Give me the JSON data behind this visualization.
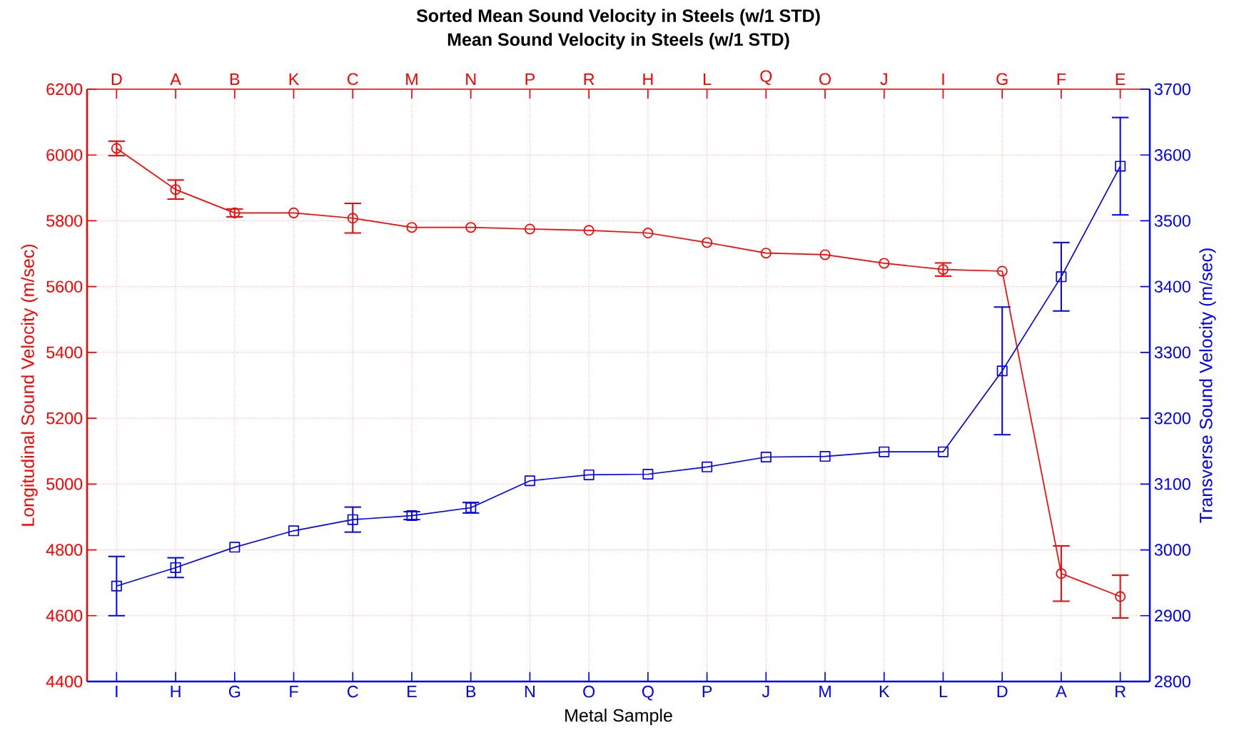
{
  "chart_data": [
    {
      "type": "line",
      "title": "Sorted Mean Sound Velocity in Steels (w/1 STD)",
      "subtitle": "Mean Sound Velocity in Steels (w/1 STD)",
      "ylabel": "Longitudinal Sound Velocity (m/sec)",
      "categories": [
        "D",
        "A",
        "B",
        "K",
        "C",
        "M",
        "N",
        "P",
        "R",
        "H",
        "L",
        "Q",
        "O",
        "J",
        "I",
        "G",
        "F",
        "E"
      ],
      "ylim": [
        4400,
        6200
      ],
      "yticks": [
        4400,
        4600,
        4800,
        5000,
        5200,
        5400,
        5600,
        5800,
        6000,
        6200
      ],
      "grid": true,
      "series": [
        {
          "color": "#ff0000",
          "marker": "circle",
          "values": [
            6020,
            5895,
            5824,
            5824,
            5808,
            5780,
            5780,
            5775,
            5771,
            5763,
            5734,
            5702,
            5697,
            5671,
            5652,
            5647,
            4728,
            4658
          ],
          "errors": [
            22,
            29,
            12,
            null,
            45,
            null,
            null,
            null,
            null,
            null,
            null,
            null,
            null,
            null,
            20,
            null,
            84,
            65
          ]
        }
      ]
    },
    {
      "type": "line",
      "xlabel": "Metal Sample",
      "ylabel": "Transverse Sound Velocity (m/sec)",
      "categories": [
        "I",
        "H",
        "G",
        "F",
        "C",
        "E",
        "B",
        "N",
        "O",
        "Q",
        "P",
        "J",
        "M",
        "K",
        "L",
        "D",
        "A",
        "R"
      ],
      "ylim": [
        2800,
        3700
      ],
      "yticks": [
        2800,
        2900,
        3000,
        3100,
        3200,
        3300,
        3400,
        3500,
        3600,
        3700
      ],
      "series": [
        {
          "color": "#0000ff",
          "marker": "square",
          "values": [
            2945,
            2973,
            3004,
            3029,
            3046,
            3052,
            3064,
            3105,
            3114,
            3115,
            3126,
            3141,
            3142,
            3149,
            3149,
            3272,
            3415,
            3583
          ],
          "errors": [
            45,
            15,
            null,
            null,
            19,
            6,
            8,
            null,
            null,
            null,
            null,
            null,
            null,
            null,
            null,
            97,
            52,
            74
          ]
        }
      ]
    }
  ]
}
